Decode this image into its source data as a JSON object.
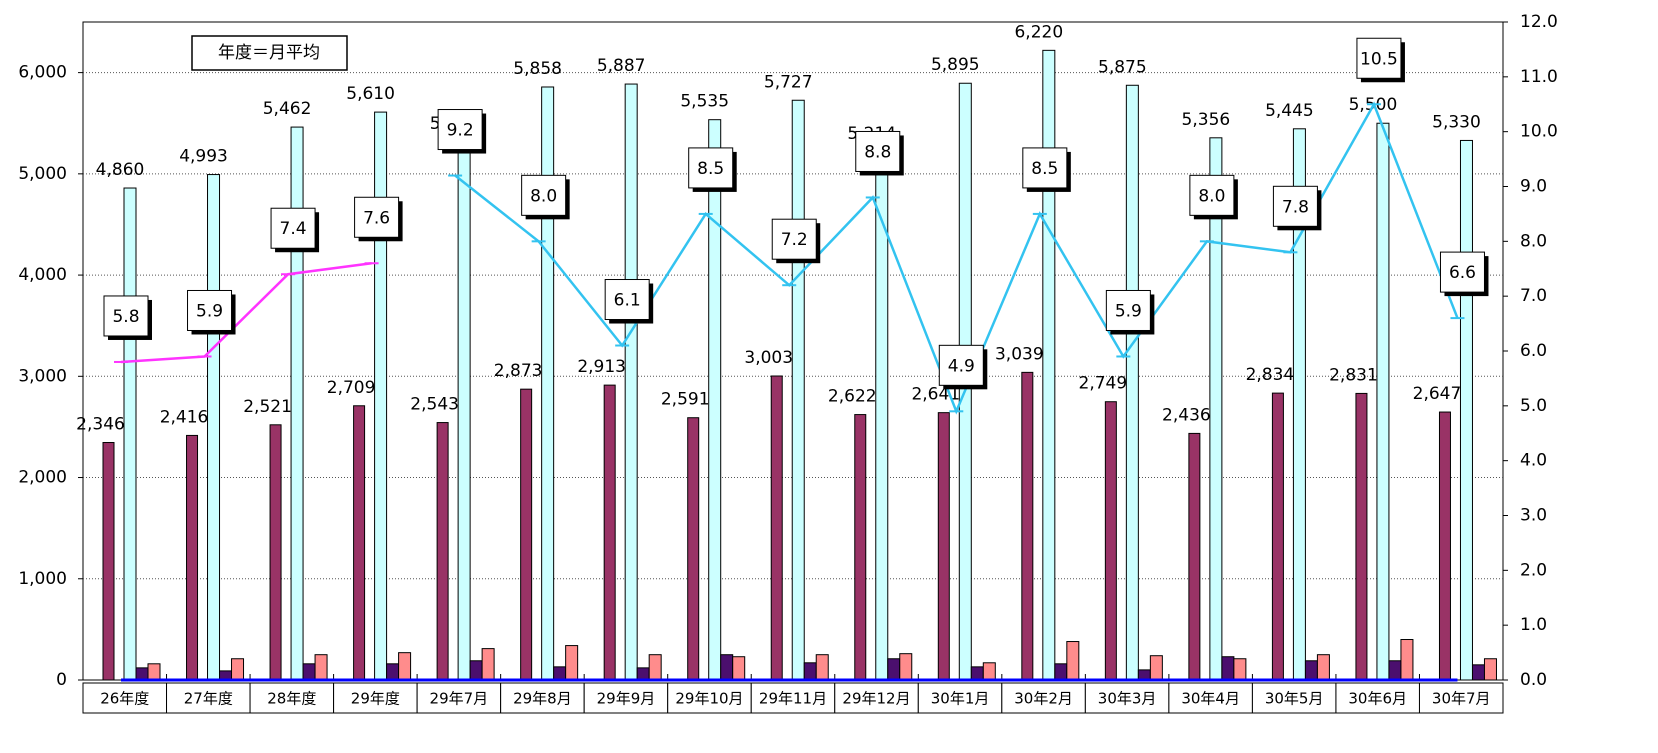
{
  "chart_data": {
    "type": "bar",
    "annotation": "年度＝月平均",
    "categories": [
      "26年度",
      "27年度",
      "28年度",
      "29年度",
      "29年7月",
      "29年8月",
      "29年9月",
      "29年10月",
      "29年11月",
      "29年12月",
      "30年1月",
      "30年2月",
      "30年3月",
      "30年4月",
      "30年5月",
      "30年6月",
      "30年7月"
    ],
    "ylim": [
      0,
      6500
    ],
    "yticks": [
      0,
      {
        "value": 1000,
        "label": "1,000"
      },
      {
        "value": 2000,
        "label": "2,000"
      },
      {
        "value": 3000,
        "label": "3,000"
      },
      {
        "value": 4000,
        "label": "4,000"
      },
      {
        "value": 5000,
        "label": "5,000"
      },
      {
        "value": 6000,
        "label": "6,000"
      }
    ],
    "y2lim": [
      0,
      12
    ],
    "y2ticks": [
      {
        "value": 0,
        "label": "0.0"
      },
      {
        "value": 1,
        "label": "1.0"
      },
      {
        "value": 2,
        "label": "2.0"
      },
      {
        "value": 3,
        "label": "3.0"
      },
      {
        "value": 4,
        "label": "4.0"
      },
      {
        "value": 5,
        "label": "5.0"
      },
      {
        "value": 6,
        "label": "6.0"
      },
      {
        "value": 7,
        "label": "7.0"
      },
      {
        "value": 8,
        "label": "8.0"
      },
      {
        "value": 9,
        "label": "9.0"
      },
      {
        "value": 10,
        "label": "10.0"
      },
      {
        "value": 11,
        "label": "11.0"
      },
      {
        "value": 12,
        "label": "12.0"
      }
    ],
    "grid": true,
    "series": [
      {
        "type": "bar",
        "color": "#993366",
        "values": [
          2346,
          2416,
          2521,
          2709,
          2543,
          2873,
          2913,
          2591,
          3003,
          2622,
          2641,
          3039,
          2749,
          2436,
          2834,
          2831,
          2647
        ],
        "value_labels": [
          "2,346",
          "2,416",
          "2,521",
          "2,709",
          "2,543",
          "2,873",
          "2,913",
          "2,591",
          "3,003",
          "2,622",
          "2,641",
          "3,039",
          "2,749",
          "2,436",
          "2,834",
          "2,831",
          "2,647"
        ]
      },
      {
        "type": "bar",
        "color": "#ccffff",
        "values": [
          4860,
          4993,
          5462,
          5610,
          5314,
          5858,
          5887,
          5535,
          5727,
          5214,
          5895,
          6220,
          5875,
          5356,
          5445,
          5500,
          5330
        ],
        "value_labels": [
          "4,860",
          "4,993",
          "5,462",
          "5,610",
          "5,314",
          "5,858",
          "5,887",
          "5,535",
          "5,727",
          "5,214",
          "5,895",
          "6,220",
          "5,875",
          "5,356",
          "5,445",
          "5,500",
          "5,330"
        ]
      },
      {
        "type": "bar",
        "color": "#4b0f6e",
        "values": [
          120,
          90,
          160,
          160,
          190,
          130,
          120,
          250,
          170,
          210,
          130,
          160,
          100,
          230,
          190,
          190,
          150
        ]
      },
      {
        "type": "bar",
        "color": "#ff8c8c",
        "values": [
          160,
          210,
          250,
          270,
          310,
          340,
          250,
          230,
          250,
          260,
          170,
          380,
          240,
          210,
          250,
          400,
          210
        ]
      },
      {
        "type": "line",
        "color": "#0000ff",
        "values": [
          0,
          0,
          0,
          0,
          0,
          0,
          0,
          0,
          0,
          0,
          0,
          0,
          0,
          0,
          0,
          0,
          0
        ]
      },
      {
        "type": "line",
        "axis": "y2",
        "color": "#ff33ff",
        "values": [
          5.8,
          5.9,
          7.4,
          7.6,
          null,
          null,
          null,
          null,
          null,
          null,
          null,
          null,
          null,
          null,
          null,
          null,
          null
        ],
        "value_labels": [
          "5.8",
          "5.9",
          "7.4",
          "7.6",
          null,
          null,
          null,
          null,
          null,
          null,
          null,
          null,
          null,
          null,
          null,
          null,
          null
        ]
      },
      {
        "type": "line",
        "axis": "y2",
        "color": "#33c3f0",
        "values": [
          null,
          null,
          null,
          null,
          9.2,
          8.0,
          6.1,
          8.5,
          7.2,
          8.8,
          4.9,
          8.5,
          5.9,
          8.0,
          7.8,
          10.5,
          6.6
        ],
        "value_labels": [
          null,
          null,
          null,
          null,
          "9.2",
          "8.0",
          "6.1",
          "8.5",
          "7.2",
          "8.8",
          "4.9",
          "8.5",
          "5.9",
          "8.0",
          "7.8",
          "10.5",
          "6.6"
        ]
      }
    ]
  }
}
